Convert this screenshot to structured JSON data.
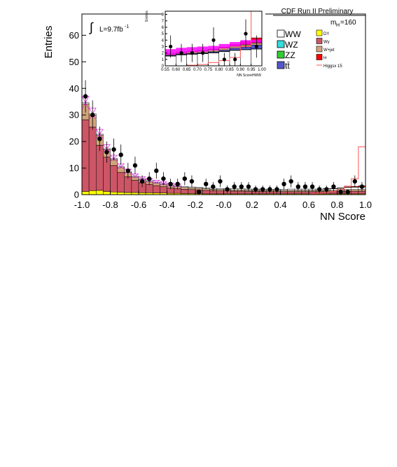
{
  "chart_data": [
    {
      "type": "bar",
      "title": "CDF Run II Preliminary",
      "xlabel": "NN Score",
      "ylabel": "Entries",
      "xlim": [
        -1.0,
        1.0
      ],
      "ylim": [
        0,
        68
      ],
      "x_ticks": [
        "-1.0",
        "-0.8",
        "-0.6",
        "-0.4",
        "-0.2",
        "-0.0",
        "0.2",
        "0.4",
        "0.6",
        "0.8",
        "1.0"
      ],
      "y_ticks": [
        "0",
        "10",
        "20",
        "30",
        "40",
        "50",
        "60"
      ],
      "stacked": true,
      "bin_edges": [
        -1.0,
        -0.95,
        -0.9,
        -0.85,
        -0.8,
        -0.75,
        -0.7,
        -0.65,
        -0.6,
        -0.55,
        -0.5,
        -0.45,
        -0.4,
        -0.35,
        -0.3,
        -0.25,
        -0.2,
        -0.15,
        -0.1,
        -0.05,
        0.0,
        0.05,
        0.1,
        0.15,
        0.2,
        0.25,
        0.3,
        0.35,
        0.4,
        0.45,
        0.5,
        0.55,
        0.6,
        0.65,
        0.7,
        0.75,
        0.8,
        0.85,
        0.9,
        0.95,
        1.0
      ],
      "series": [
        {
          "name": "DY",
          "color": "#ffff00",
          "values": [
            1.2,
            1.5,
            1.6,
            1.2,
            1.0,
            0.9,
            0.8,
            0.8,
            0.7,
            0.7,
            0.6,
            0.6,
            0.5,
            0.5,
            0.4,
            0.4,
            0.4,
            0.3,
            0.3,
            0.3,
            0.3,
            0.3,
            0.3,
            0.3,
            0.3,
            0.3,
            0.3,
            0.3,
            0.3,
            0.3,
            0.3,
            0.3,
            0.3,
            0.3,
            0.3,
            0.3,
            0.3,
            0.3,
            0.3,
            0.3
          ]
        },
        {
          "name": "Wγ",
          "color": "#cc5566",
          "values": [
            27,
            24,
            17,
            13,
            10,
            7.5,
            6,
            4.6,
            3.8,
            3.2,
            2.8,
            2.4,
            2.0,
            1.8,
            1.6,
            1.5,
            1.4,
            1.3,
            1.2,
            1.1,
            1.1,
            1.0,
            1.0,
            0.9,
            0.9,
            0.9,
            0.8,
            0.8,
            0.8,
            0.8,
            0.8,
            0.8,
            0.8,
            0.8,
            0.8,
            0.8,
            0.9,
            1.0,
            1.0,
            1.0
          ]
        },
        {
          "name": "W+jet",
          "color": "#d2a47a",
          "values": [
            6.0,
            4.5,
            3.8,
            2.8,
            2.2,
            1.8,
            1.5,
            1.2,
            1.1,
            1.0,
            0.9,
            0.8,
            0.8,
            0.7,
            0.7,
            0.6,
            0.6,
            0.6,
            0.5,
            0.5,
            0.5,
            0.5,
            0.5,
            0.5,
            0.5,
            0.5,
            0.5,
            0.5,
            0.5,
            0.5,
            0.5,
            0.5,
            0.5,
            0.5,
            0.5,
            0.5,
            0.5,
            0.6,
            0.6,
            0.6
          ]
        },
        {
          "name": "WW",
          "color": "#ffffff",
          "values": [
            0.4,
            0.4,
            0.4,
            0.4,
            0.4,
            0.4,
            0.4,
            0.4,
            0.4,
            0.4,
            0.4,
            0.4,
            0.4,
            0.4,
            0.4,
            0.4,
            0.4,
            0.4,
            0.4,
            0.4,
            0.4,
            0.4,
            0.4,
            0.4,
            0.4,
            0.4,
            0.4,
            0.4,
            0.4,
            0.5,
            0.5,
            0.5,
            0.5,
            0.5,
            0.6,
            0.6,
            0.7,
            0.8,
            0.9,
            1.0
          ]
        },
        {
          "name": "H",
          "color": "#ff0000",
          "values": [
            0,
            0,
            0,
            0,
            0,
            0,
            0,
            0,
            0,
            0,
            0,
            0,
            0,
            0,
            0,
            0,
            0,
            0,
            0,
            0,
            0,
            0,
            0,
            0,
            0,
            0,
            0,
            0,
            0,
            0,
            0,
            0,
            0,
            0,
            0.05,
            0.1,
            0.15,
            0.2,
            0.3,
            0.4
          ]
        }
      ],
      "higgs_line": {
        "name": "Higgsx 15",
        "color": "#ff5555",
        "values": [
          0,
          0,
          0,
          0,
          0,
          0,
          0,
          0,
          0,
          0,
          0,
          0,
          0,
          0,
          0,
          0,
          0,
          0,
          0,
          0,
          0,
          0,
          0,
          0,
          0,
          0,
          0,
          0,
          0,
          0,
          0,
          0,
          0.2,
          0.5,
          0.8,
          1.2,
          2.0,
          3.2,
          6.0,
          18.0
        ]
      },
      "uncertainty_band_color": "#dd33dd",
      "data_points": {
        "x": [
          -0.975,
          -0.925,
          -0.875,
          -0.825,
          -0.775,
          -0.725,
          -0.675,
          -0.625,
          -0.575,
          -0.525,
          -0.475,
          -0.425,
          -0.375,
          -0.325,
          -0.275,
          -0.225,
          -0.175,
          -0.125,
          -0.075,
          -0.025,
          0.025,
          0.075,
          0.125,
          0.175,
          0.225,
          0.275,
          0.325,
          0.375,
          0.425,
          0.475,
          0.525,
          0.575,
          0.625,
          0.675,
          0.725,
          0.775,
          0.825,
          0.875,
          0.925,
          0.975
        ],
        "y": [
          37,
          30,
          21,
          16,
          17,
          15,
          9,
          11,
          5,
          6,
          9,
          6,
          4,
          4,
          6,
          5,
          1,
          4,
          3,
          5,
          2,
          3,
          3,
          3,
          2,
          2,
          2,
          2,
          4,
          5,
          3,
          3,
          3,
          2,
          2,
          3,
          1,
          1,
          5,
          3
        ]
      },
      "luminosity_label": "L=9.7fb",
      "luminosity_superscript": "-1",
      "integral_symbol": "∫",
      "mass_label_main": "m",
      "mass_label_sub": "H",
      "mass_label_value": "=160",
      "legend": [
        {
          "label": "WW",
          "color": "#ffffff"
        },
        {
          "label": "WZ",
          "color": "#33dddd"
        },
        {
          "label": "ZZ",
          "color": "#33cc33"
        },
        {
          "label": "tt̄",
          "color": "#5555cc"
        },
        {
          "label": "DY",
          "color": "#ffff00"
        },
        {
          "label": "Wγ",
          "color": "#cc5566"
        },
        {
          "label": "W+jet",
          "color": "#d2a47a"
        },
        {
          "label": "H",
          "color": "#ff0000"
        },
        {
          "label": "Higgsx 15",
          "color": "#ff5555"
        }
      ]
    },
    {
      "type": "bar",
      "title": "",
      "xlabel": "NN ScoreHWW",
      "ylabel": "Entries",
      "xlim": [
        0.55,
        1.0
      ],
      "ylim": [
        0,
        8.5
      ],
      "x_ticks": [
        "0.55",
        "0.60",
        "0.65",
        "0.70",
        "0.75",
        "0.80",
        "0.85",
        "0.90",
        "0.95",
        "1.00"
      ],
      "y_ticks": [
        "0",
        "1",
        "2",
        "3",
        "4",
        "5",
        "6",
        "7",
        "8"
      ],
      "bin_edges": [
        0.55,
        0.6,
        0.65,
        0.7,
        0.75,
        0.8,
        0.85,
        0.9,
        0.95,
        1.0
      ],
      "series": [
        {
          "name": "WW",
          "color": "#ffffff",
          "values": [
            1.5,
            1.7,
            1.8,
            1.9,
            2.0,
            2.2,
            2.4,
            2.5,
            2.6
          ]
        },
        {
          "name": "ZZ",
          "color": "#33cc33",
          "values": [
            0.05,
            0.05,
            0.05,
            0.05,
            0.05,
            0.05,
            0.05,
            0.05,
            0.05
          ]
        },
        {
          "name": "tt̄",
          "color": "#5555cc",
          "values": [
            0.1,
            0.1,
            0.1,
            0.1,
            0.15,
            0.2,
            0.3,
            0.4,
            0.6
          ]
        },
        {
          "name": "W+jet",
          "color": "#d2a47a",
          "values": [
            0.3,
            0.3,
            0.3,
            0.3,
            0.3,
            0.3,
            0.3,
            0.3,
            0.3
          ]
        },
        {
          "name": "H",
          "color": "#ff0000",
          "values": [
            0,
            0,
            0,
            0.05,
            0.1,
            0.15,
            0.25,
            0.5,
            0.8
          ]
        }
      ],
      "higgs_line": {
        "name": "Higgsx 15",
        "color": "#ff5555",
        "values": [
          0,
          0,
          0.1,
          0.2,
          0.5,
          0.8,
          1.3,
          3.0,
          8.5
        ]
      },
      "uncertainty_band": {
        "color": "#ff00ff",
        "low": [
          1.7,
          1.9,
          2.1,
          2.2,
          2.4,
          2.7,
          3.0,
          3.3,
          3.6
        ],
        "high": [
          2.6,
          2.8,
          2.9,
          3.0,
          3.1,
          3.4,
          3.7,
          4.0,
          4.1
        ]
      },
      "data_points": {
        "x": [
          0.575,
          0.625,
          0.675,
          0.725,
          0.775,
          0.825,
          0.875,
          0.925,
          0.975
        ],
        "y": [
          3,
          2,
          2,
          2,
          4,
          1,
          1,
          5,
          3
        ]
      }
    }
  ]
}
